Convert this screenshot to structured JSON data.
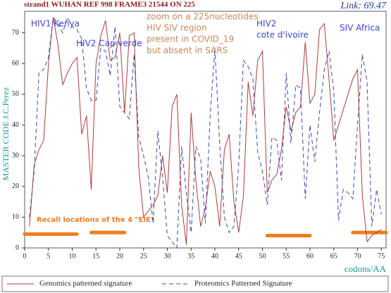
{
  "chart_data": {
    "type": "line",
    "title": "strand1 WUHAN REF 998 FRAME3  21544 ON 225",
    "link_label": "Link: 69.47",
    "y_label": "MASTER CODE J.C.Perez",
    "x_label": "codons/AA",
    "x": [
      1,
      2,
      3,
      4,
      5,
      6,
      7,
      8,
      9,
      10,
      11,
      12,
      13,
      14,
      15,
      16,
      17,
      18,
      19,
      20,
      21,
      22,
      23,
      24,
      25,
      26,
      27,
      28,
      29,
      30,
      31,
      32,
      33,
      34,
      35,
      36,
      37,
      38,
      39,
      40,
      41,
      42,
      43,
      44,
      45,
      46,
      47,
      48,
      49,
      50,
      51,
      52,
      53,
      54,
      55,
      56,
      57,
      58,
      59,
      60,
      61,
      62,
      63,
      64,
      65,
      66,
      67,
      68,
      69,
      70,
      71,
      72,
      73,
      74,
      75
    ],
    "series": [
      {
        "name": "Genomics patterned signature",
        "color": "#b03a3a",
        "dash": false,
        "values": [
          7,
          27,
          32,
          35,
          60,
          75,
          66,
          53,
          57,
          60,
          62,
          37,
          43,
          19,
          60,
          69,
          74,
          61,
          62,
          70,
          44,
          69,
          70,
          26,
          10,
          12,
          14,
          17,
          30,
          18,
          46,
          50,
          14,
          1,
          44,
          22,
          7,
          13,
          25,
          20,
          7,
          32,
          37,
          15,
          5,
          17,
          54,
          43,
          61,
          64,
          18,
          22,
          24,
          32,
          46,
          38,
          44,
          46,
          67,
          47,
          50,
          71,
          73,
          55,
          35,
          40,
          45,
          50,
          55,
          58,
          17,
          2,
          4,
          5,
          6
        ]
      },
      {
        "name": "Proteomics Patterned Signature",
        "color": "#3c46b4",
        "dash": true,
        "values": [
          10,
          25,
          57,
          58,
          62,
          75,
          73,
          70,
          75,
          72,
          71,
          68,
          52,
          48,
          48,
          65,
          64,
          56,
          72,
          46,
          44,
          42,
          63,
          36,
          30,
          23,
          8,
          38,
          23,
          4,
          2,
          0,
          33,
          18,
          5,
          33,
          29,
          8,
          43,
          65,
          34,
          10,
          5,
          7,
          27,
          61,
          59,
          55,
          31,
          25,
          14,
          36,
          35,
          22,
          57,
          34,
          53,
          52,
          16,
          40,
          28,
          44,
          58,
          64,
          51,
          9,
          19,
          18,
          16,
          40,
          63,
          54,
          7,
          19,
          11
        ]
      }
    ],
    "xlim": [
      0,
      76
    ],
    "ylim": [
      0,
      77
    ],
    "xticks": [
      0,
      5,
      10,
      15,
      20,
      25,
      30,
      35,
      40,
      45,
      50,
      55,
      60,
      65,
      70,
      75
    ],
    "yticks": [
      0,
      10,
      20,
      30,
      40,
      50,
      60,
      70
    ],
    "eie_label": "Recall locations of the 4 \"EIE\"",
    "eie_color": "#f07d1e",
    "eie_bars": [
      {
        "x": [
          0,
          11
        ],
        "y": 4.5
      },
      {
        "x": [
          14,
          21
        ],
        "y": 5
      },
      {
        "x": [
          51,
          60
        ],
        "y": 4
      },
      {
        "x": [
          69,
          76
        ],
        "y": 5
      }
    ],
    "annotations": [
      {
        "text": "HIV1 Kenya",
        "color": "#3c46c8"
      },
      {
        "text": "HIV2 Cap verde",
        "color": "#3c46c8"
      },
      {
        "text": [
          "zoom on a 225nucleotides",
          "HIV SIV region",
          "present in COVID_19",
          "but absent in SARS"
        ],
        "color": "#c8875a"
      },
      {
        "text": [
          "HIV2",
          "cote d'ivoire"
        ],
        "color": "#3c46c8"
      },
      {
        "text": "SIV Africa",
        "color": "#3c46c8"
      }
    ]
  }
}
